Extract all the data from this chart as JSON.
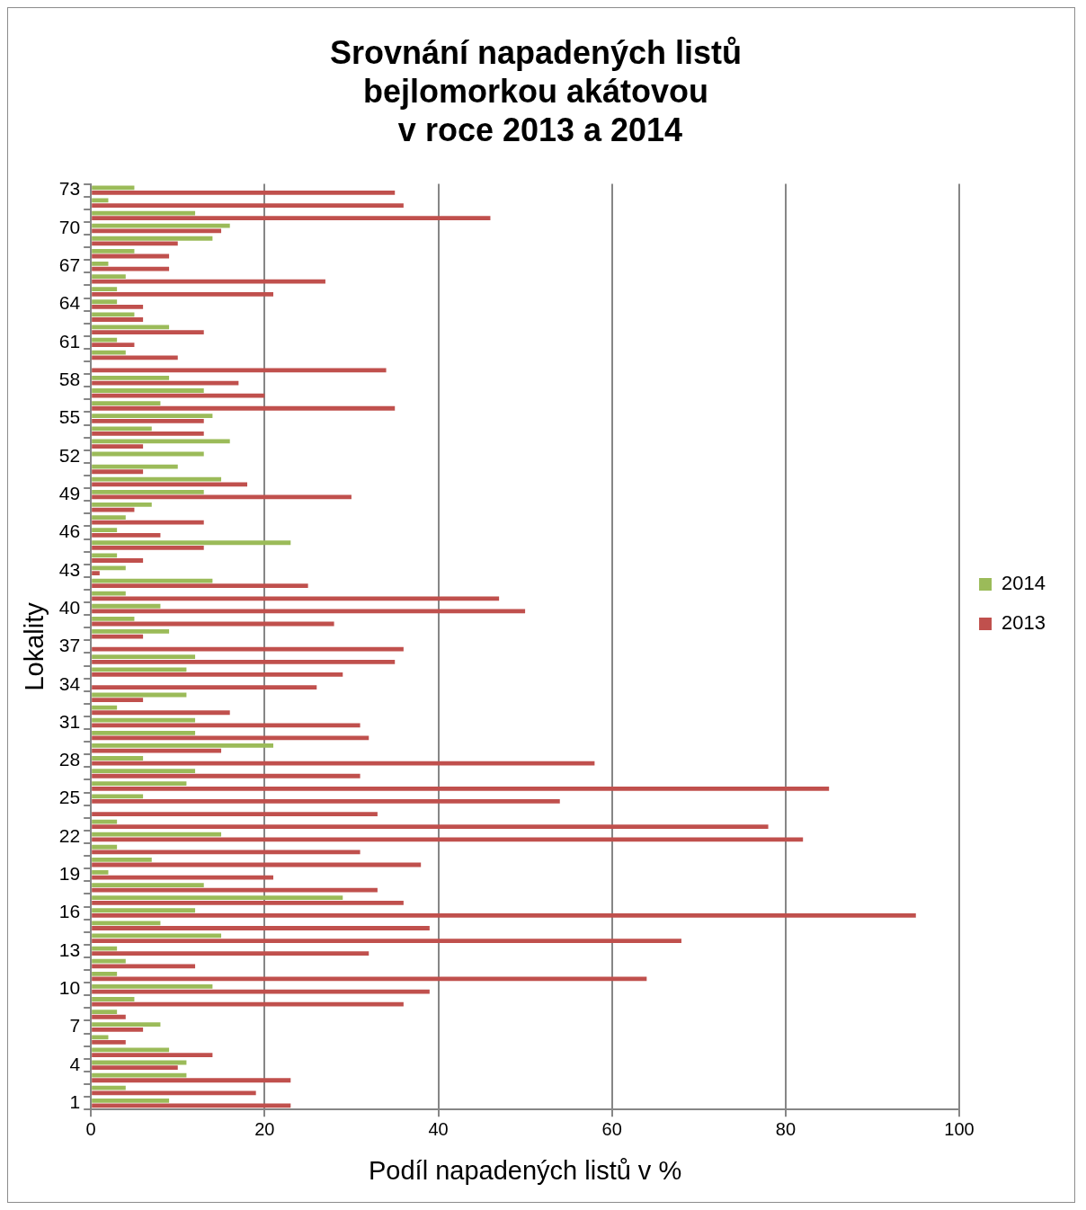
{
  "chart_data": {
    "type": "bar",
    "orientation": "horizontal",
    "title": "Srovnání napadených listů\nbejlomorkou akátovou\n v roce 2013 a 2014",
    "xlabel": "Podíl napadených listů v %",
    "ylabel": "Lokality",
    "categories": [
      "73",
      null,
      null,
      "70",
      null,
      null,
      "67",
      null,
      null,
      "64",
      null,
      null,
      "61",
      null,
      null,
      "58",
      null,
      null,
      "55",
      null,
      null,
      "52",
      null,
      null,
      "49",
      null,
      null,
      "46",
      null,
      null,
      "43",
      null,
      null,
      "40",
      null,
      null,
      "37",
      null,
      null,
      "34",
      null,
      null,
      "31",
      null,
      null,
      "28",
      null,
      null,
      "25",
      null,
      null,
      "22",
      null,
      null,
      "19",
      null,
      null,
      "16",
      null,
      null,
      "13",
      null,
      null,
      "10",
      null,
      null,
      "7",
      null,
      null,
      "4",
      null,
      null,
      "1"
    ],
    "series": [
      {
        "name": "2014",
        "color": "#9bbb59",
        "values": [
          5,
          2,
          12,
          16,
          14,
          5,
          2,
          4,
          3,
          3,
          5,
          9,
          3,
          4,
          0,
          9,
          13,
          8,
          14,
          7,
          16,
          13,
          10,
          15,
          13,
          7,
          4,
          3,
          23,
          3,
          4,
          14,
          4,
          8,
          5,
          9,
          0,
          12,
          11,
          0,
          11,
          3,
          12,
          12,
          21,
          6,
          12,
          11,
          6,
          0,
          3,
          15,
          3,
          7,
          2,
          13,
          29,
          12,
          8,
          15,
          3,
          4,
          3,
          14,
          5,
          3,
          8,
          2,
          9,
          11,
          11,
          4,
          9
        ]
      },
      {
        "name": "2013",
        "color": "#c0504d",
        "values": [
          35,
          36,
          46,
          15,
          10,
          9,
          9,
          27,
          21,
          6,
          6,
          13,
          5,
          10,
          34,
          17,
          20,
          35,
          13,
          13,
          6,
          0,
          6,
          18,
          30,
          5,
          13,
          8,
          13,
          6,
          1,
          25,
          47,
          50,
          28,
          6,
          36,
          35,
          29,
          26,
          6,
          16,
          31,
          32,
          15,
          58,
          31,
          85,
          54,
          33,
          78,
          82,
          31,
          38,
          21,
          33,
          36,
          95,
          39,
          68,
          32,
          12,
          64,
          39,
          36,
          4,
          6,
          4,
          14,
          10,
          23,
          19,
          23
        ]
      }
    ],
    "xlim": [
      0,
      100
    ],
    "xticks": [
      0,
      20,
      40,
      60,
      80,
      100
    ],
    "grid": "x",
    "legend": "right"
  }
}
